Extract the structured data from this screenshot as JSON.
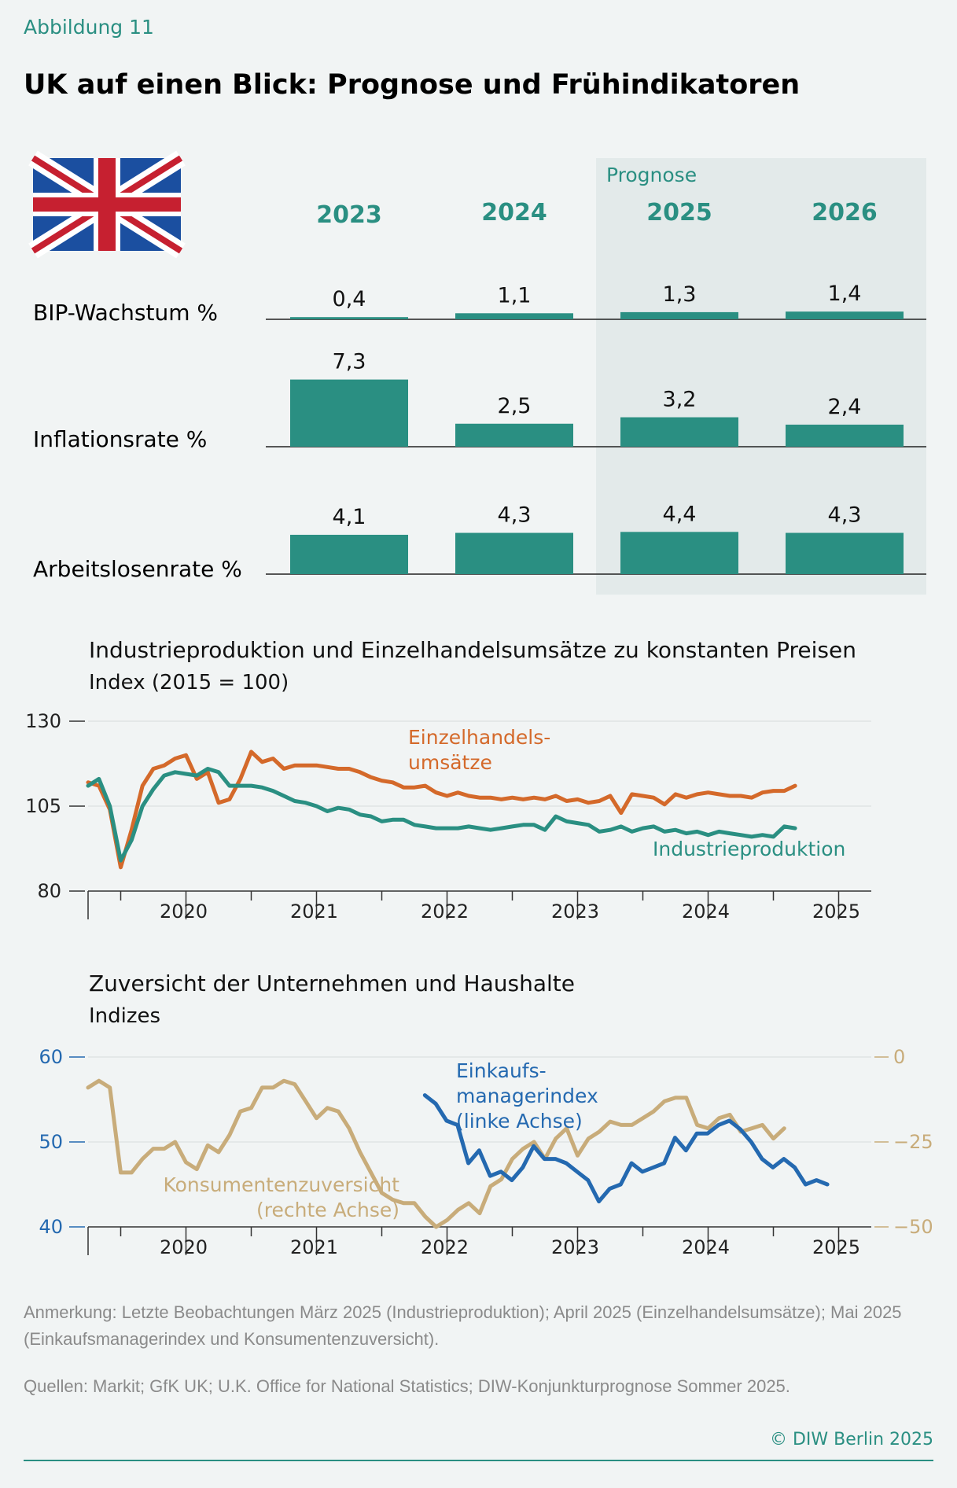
{
  "header": {
    "figure_label": "Abbildung 11",
    "title": "UK auf einen Blick: Prognose und Frühindikatoren"
  },
  "colors": {
    "teal": "#2a8f82",
    "orange": "#d4692a",
    "blue": "#2469b0",
    "tan": "#c8ac7a",
    "forecast_bg": "#e3eaea",
    "axis": "#333333"
  },
  "flag": {
    "icon": "union-jack-flag-icon",
    "colors": [
      "#1b4fa0",
      "#ffffff",
      "#c62030"
    ]
  },
  "forecast_label": "Prognose",
  "chart_data": [
    {
      "type": "bar",
      "title": "UK auf einen Blick: Prognose",
      "categories": [
        "2023",
        "2024",
        "2025",
        "2026"
      ],
      "forecast_categories": [
        "2025",
        "2026"
      ],
      "series": [
        {
          "name": "BIP-Wachstum %",
          "values": [
            0.4,
            1.1,
            1.3,
            1.4
          ],
          "labels": [
            "0,4",
            "1,1",
            "1,3",
            "1,4"
          ]
        },
        {
          "name": "Inflationsrate %",
          "values": [
            7.3,
            2.5,
            3.2,
            2.4
          ],
          "labels": [
            "7,3",
            "2,5",
            "3,2",
            "2,4"
          ]
        },
        {
          "name": "Arbeitslosenrate %",
          "values": [
            4.1,
            4.3,
            4.4,
            4.3
          ],
          "labels": [
            "4,1",
            "4,3",
            "4,4",
            "4,3"
          ]
        }
      ]
    },
    {
      "type": "line",
      "title": "Industrieproduktion und Einzelhandelsumsätze zu konstanten Preisen",
      "subtitle": "Index (2015 = 100)",
      "ylim": [
        80,
        130
      ],
      "yticks": [
        80,
        105,
        130
      ],
      "x_start": 2019.25,
      "x_end": 2025.25,
      "xticks": [
        "2020",
        "2021",
        "2022",
        "2023",
        "2024",
        "2025"
      ],
      "series": [
        {
          "name": "Einzelhandelsumsätze",
          "label": "Einzelhandels-\numsätze",
          "start": 2019.25,
          "step": 0.08333,
          "values": [
            112,
            111,
            104,
            87,
            98,
            111,
            116,
            117,
            119,
            120,
            113,
            115,
            106,
            107,
            113,
            121,
            118,
            119,
            116,
            117,
            117,
            117,
            116.5,
            116,
            116,
            115,
            113.5,
            112.5,
            112,
            110.5,
            110.5,
            111,
            109,
            108,
            109,
            108,
            107.5,
            107.5,
            107,
            107.5,
            107,
            107.5,
            107,
            108,
            106.5,
            107,
            106,
            106.5,
            108,
            103,
            108.5,
            108,
            107.5,
            105.5,
            108.5,
            107.5,
            108.5,
            109,
            108.5,
            108,
            108,
            107.5,
            109,
            109.5,
            109.5,
            111
          ]
        },
        {
          "name": "Industrieproduktion",
          "start": 2019.25,
          "step": 0.08333,
          "values": [
            111,
            113,
            105,
            89,
            95,
            105,
            110,
            114,
            115,
            114.5,
            114,
            116,
            115,
            111,
            111,
            111,
            110.5,
            109.5,
            108,
            106.5,
            106,
            105,
            103.5,
            104.5,
            104,
            102.5,
            102,
            100.5,
            101,
            101,
            99.5,
            99,
            98.5,
            98.5,
            98.5,
            99,
            98.5,
            98,
            98.5,
            99,
            99.5,
            99.5,
            98,
            102,
            100.5,
            100,
            99.5,
            97.5,
            98,
            99,
            97.5,
            98.5,
            99,
            97.5,
            98,
            97,
            97.5,
            96.5,
            97.5,
            97,
            96.5,
            96,
            96.5,
            96,
            99,
            98.5
          ]
        }
      ]
    },
    {
      "type": "line",
      "title": "Zuversicht der Unternehmen und Haushalte",
      "subtitle": "Indizes",
      "ylim_left": [
        40,
        60
      ],
      "yticks_left": [
        40,
        50,
        60
      ],
      "ylim_right": [
        -50,
        0
      ],
      "yticks_right": [
        0,
        -25,
        -50
      ],
      "yticklabels_right": [
        "0",
        "−25",
        "−50"
      ],
      "x_start": 2019.25,
      "x_end": 2025.25,
      "xticks": [
        "2020",
        "2021",
        "2022",
        "2023",
        "2024",
        "2025"
      ],
      "series": [
        {
          "name": "Einkaufsmanagerindex",
          "label": "Einkaufs-\nmanagerindex\n(linke Achse)",
          "axis": "left",
          "start": 2021.83,
          "step": 0.08333,
          "values": [
            55.5,
            54.5,
            52.5,
            52,
            47.5,
            49,
            46,
            46.5,
            45.5,
            47,
            49.5,
            48,
            48,
            47.5,
            46.5,
            45.5,
            43,
            44.5,
            45,
            47.5,
            46.5,
            47,
            47.5,
            50.5,
            49,
            51,
            51,
            52,
            52.5,
            51.5,
            50,
            48,
            47,
            48,
            47,
            45,
            45.5,
            45
          ]
        },
        {
          "name": "Konsumentenzuversicht",
          "label": "Konsumentenzuversicht\n(rechte Achse)",
          "axis": "right",
          "start": 2019.25,
          "step": 0.08333,
          "values": [
            -9,
            -7,
            -9,
            -34,
            -34,
            -30,
            -27,
            -27,
            -25,
            -31,
            -33,
            -26,
            -28,
            -23,
            -16,
            -15,
            -9,
            -9,
            -7,
            -8,
            -13,
            -18,
            -15,
            -16,
            -21,
            -28,
            -34,
            -40,
            -42,
            -43,
            -43,
            -47,
            -50,
            -48,
            -45,
            -43,
            -46,
            -38,
            -36,
            -30,
            -27,
            -25,
            -30,
            -24,
            -21,
            -29,
            -24,
            -22,
            -19,
            -20,
            -20,
            -18,
            -16,
            -13,
            -12,
            -12,
            -20,
            -21,
            -18,
            -17,
            -22,
            -21,
            -20,
            -24,
            -21
          ]
        }
      ]
    }
  ],
  "table_rows": {
    "gdp_label": "BIP-Wachstum %",
    "inflation_label": "Inflationsrate %",
    "unemployment_label": "Arbeitslosenrate %"
  },
  "footnotes": {
    "note": "Anmerkung: Letzte Beobachtungen März 2025 (Industrieproduktion); April 2025 (Einzelhandelsumsätze); Mai 2025 (Einkaufsmanagerindex und Konsumentenzuversicht).",
    "sources": "Quellen: Markit; GfK UK; U.K. Office for National Statistics; DIW-Konjunkturprognose Sommer 2025.",
    "credit": "© DIW Berlin 2025"
  }
}
